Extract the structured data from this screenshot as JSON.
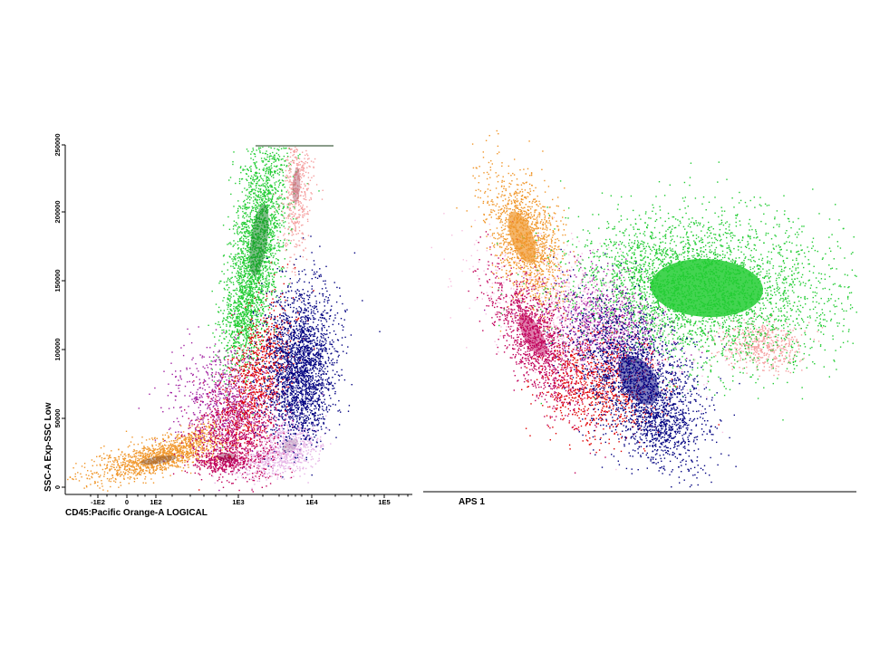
{
  "chart_data": [
    {
      "type": "scatter",
      "xlabel": "CD45:Pacific Orange-A LOGICAL",
      "ylabel": "SSC-A Exp-SSC Low",
      "x_scale": "logicle",
      "x_ticks": [
        "-1E2",
        "0",
        "1E2",
        "1E3",
        "1E4",
        "1E5"
      ],
      "y_ticks": [
        "0",
        "50000",
        "100000",
        "150000",
        "200000",
        "250000"
      ],
      "ylim": [
        0,
        250000
      ],
      "grid": false,
      "populations": [
        {
          "color": "#f0962a",
          "x_center": 150,
          "y_center": 17000
        },
        {
          "color": "#22cc33",
          "x_center": 2200,
          "y_center": 170000
        },
        {
          "color": "#f5a0a0",
          "x_center": 7000,
          "y_center": 225000
        },
        {
          "color": "#c0005a",
          "x_center": 1000,
          "y_center": 20000
        },
        {
          "color": "#e6b3e6",
          "x_center": 8000,
          "y_center": 35000
        },
        {
          "color": "#a020a0",
          "x_center": 800,
          "y_center": 70000
        },
        {
          "color": "#e00000",
          "x_center": 2000,
          "y_center": 70000
        },
        {
          "color": "#000080",
          "x_center": 6500,
          "y_center": 95000
        }
      ]
    },
    {
      "type": "scatter",
      "xlabel": "APS 1",
      "grid": false,
      "populations": [
        {
          "color": "#f0962a"
        },
        {
          "color": "#22cc33"
        },
        {
          "color": "#f5a0a0"
        },
        {
          "color": "#c0005a"
        },
        {
          "color": "#f7c0e0"
        },
        {
          "color": "#a020a0"
        },
        {
          "color": "#e00000"
        },
        {
          "color": "#000080"
        }
      ]
    }
  ]
}
